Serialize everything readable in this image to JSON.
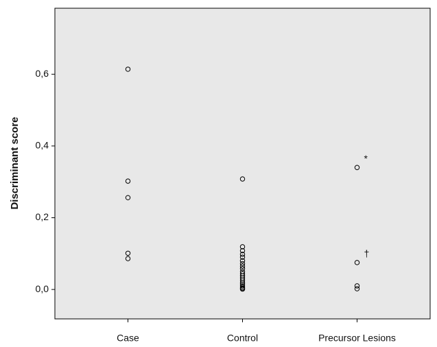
{
  "chart_data": {
    "type": "strip",
    "y_label": "Discriminant score",
    "categories": [
      "Case",
      "Control",
      "Precursor Lesions"
    ],
    "values": [
      [
        0.614,
        0.302,
        0.256,
        0.101,
        0.086
      ],
      [
        0.308,
        0.119,
        0.108,
        0.098,
        0.09,
        0.08,
        0.072,
        0.065,
        0.058,
        0.05,
        0.044,
        0.038,
        0.032,
        0.026,
        0.02,
        0.015,
        0.01,
        0.006,
        0.003,
        0.001
      ],
      [
        0.34,
        0.075,
        0.01,
        0.002
      ]
    ],
    "annotations": [
      [
        null,
        null,
        null,
        null,
        null
      ],
      [
        null,
        null,
        null,
        null,
        null,
        null,
        null,
        null,
        null,
        null,
        null,
        null,
        null,
        null,
        null,
        null,
        null,
        null,
        null,
        null
      ],
      [
        "*",
        "†",
        null,
        null
      ]
    ],
    "ylim": [
      -0.082,
      0.784
    ],
    "yticks": [
      {
        "value": 0,
        "label": "0,0"
      },
      {
        "value": 0.2,
        "label": "0,2"
      },
      {
        "value": 0.4,
        "label": "0,4"
      },
      {
        "value": 0.6,
        "label": "0,6"
      }
    ],
    "background": "#e8e8e8",
    "marker_color": "#000000"
  }
}
